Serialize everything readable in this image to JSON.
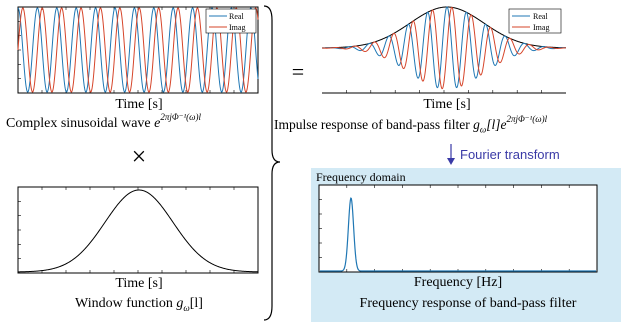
{
  "colors": {
    "real": "#1f77b4",
    "imag": "#d6452a",
    "envelope": "#000000",
    "freq_panel_bg": "#d3eaf5",
    "arrow": "#3a3aa6"
  },
  "sinusoid": {
    "xlabel": "Time [s]",
    "caption": "Complex sinusoidal wave",
    "caption_math": "e",
    "caption_exp": "2πjΦ⁻¹(ω)l",
    "legend": [
      "Real",
      "Imag"
    ]
  },
  "window": {
    "xlabel": "Time [s]",
    "caption": "Window function ",
    "caption_math": "g",
    "caption_sub": "ω",
    "caption_arg": "[l]"
  },
  "impulse": {
    "xlabel": "Time [s]",
    "caption": "Impulse response of band-pass filter ",
    "caption_math": "g",
    "caption_sub": "ω",
    "caption_arg": "[l]e",
    "caption_exp": "2πjΦ⁻¹(ω)l",
    "legend": [
      "Real",
      "Imag"
    ]
  },
  "frequency": {
    "panel_title": "Frequency domain",
    "xlabel": "Frequency [Hz]",
    "caption": "Frequency response of band-pass filter"
  },
  "operators": {
    "times": "×",
    "equals": "="
  },
  "arrow_label": "Fourier transform"
}
